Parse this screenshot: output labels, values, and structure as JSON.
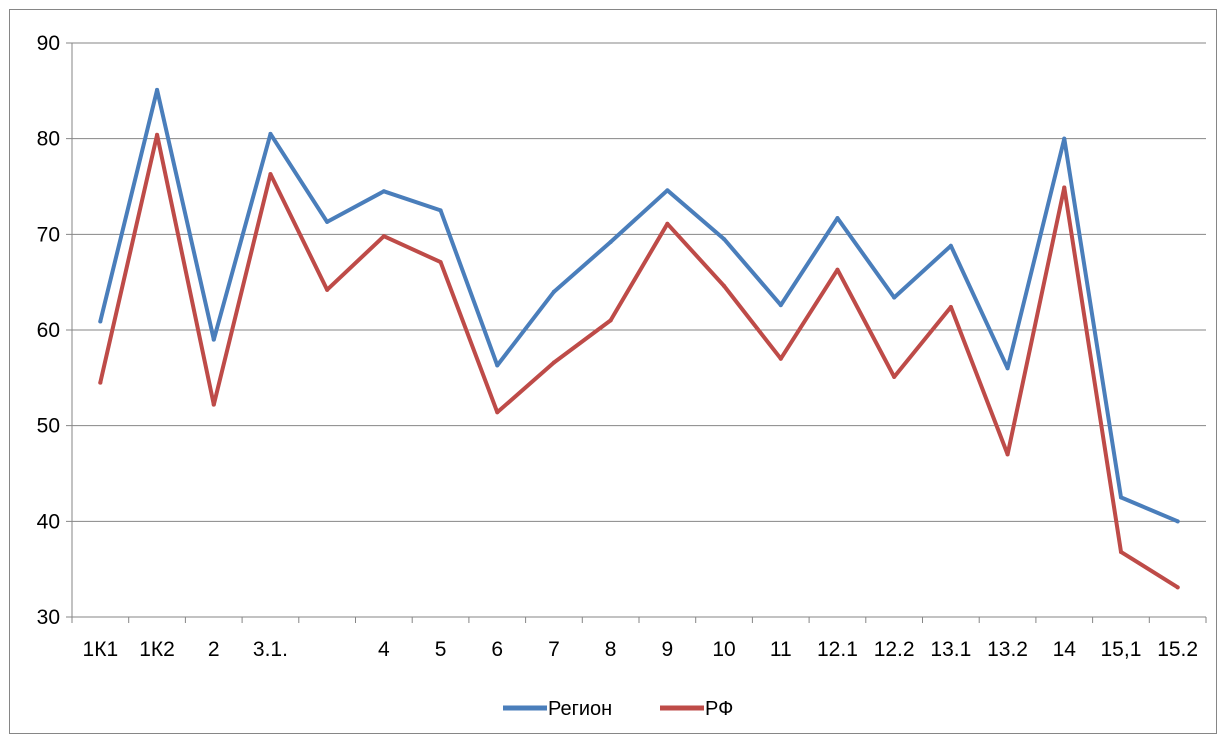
{
  "chart_data": {
    "type": "line",
    "categories": [
      "1К1",
      "1К2",
      "2",
      "3.1.",
      "",
      "4",
      "5",
      "6",
      "7",
      "8",
      "9",
      "10",
      "11",
      "12.1",
      "12.2",
      "13.1",
      "13.2",
      "14",
      "15,1",
      "15.2"
    ],
    "series": [
      {
        "name": "Регион",
        "color": "#4a7ebb",
        "values": [
          60.9,
          85.1,
          59.0,
          80.5,
          71.3,
          74.5,
          72.5,
          56.3,
          64.0,
          69.2,
          74.6,
          69.5,
          62.6,
          71.7,
          63.4,
          68.8,
          56.0,
          80.0,
          42.5,
          40.0
        ]
      },
      {
        "name": "РФ",
        "color": "#be4b48",
        "values": [
          54.5,
          80.4,
          52.2,
          76.3,
          64.2,
          69.8,
          67.1,
          51.4,
          56.6,
          61.0,
          71.1,
          64.6,
          57.0,
          66.3,
          55.1,
          62.4,
          47.0,
          74.9,
          36.8,
          33.1
        ]
      }
    ],
    "ylim": [
      30,
      90
    ],
    "yticks": [
      30,
      40,
      50,
      60,
      70,
      80,
      90
    ],
    "grid": true,
    "legend_position": "bottom"
  }
}
